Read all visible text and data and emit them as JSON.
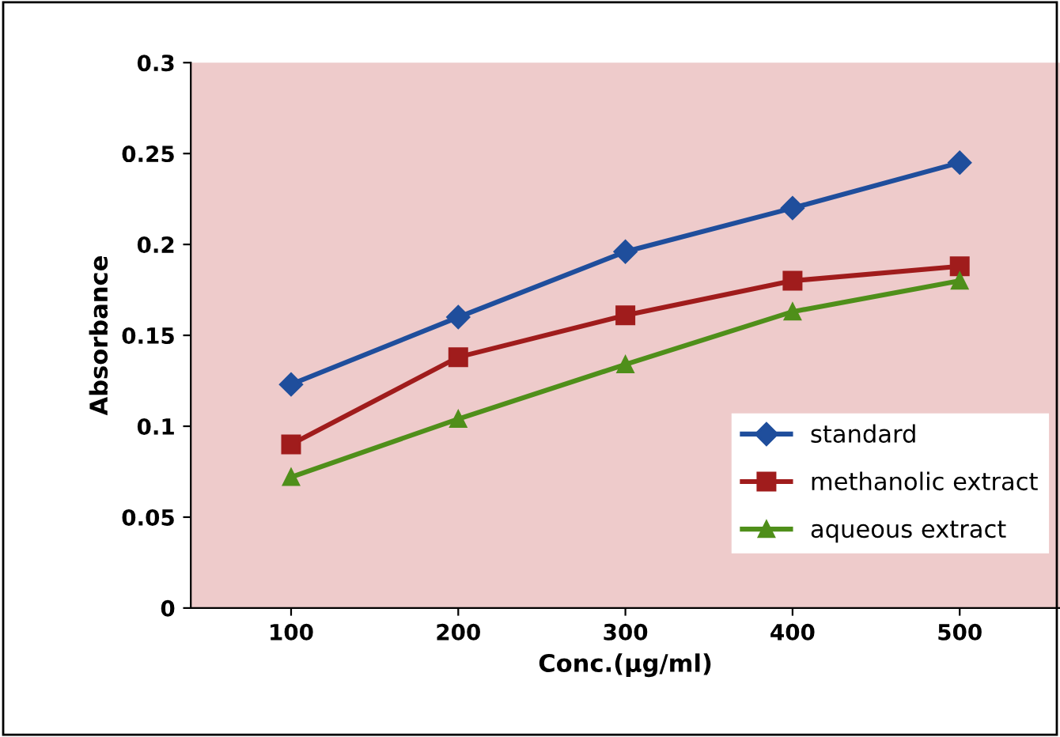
{
  "chart_data": {
    "type": "line",
    "xlabel": "Conc.(µg/ml)",
    "ylabel": "Absorbance",
    "categories": [
      "100",
      "200",
      "300",
      "400",
      "500"
    ],
    "series": [
      {
        "name": "standard",
        "color": "#1f4e9c",
        "marker": "diamond",
        "values": [
          0.123,
          0.16,
          0.196,
          0.22,
          0.245
        ]
      },
      {
        "name": "methanolic extract",
        "color": "#a01c1c",
        "marker": "square",
        "values": [
          0.09,
          0.138,
          0.161,
          0.18,
          0.188
        ]
      },
      {
        "name": "aqueous extract",
        "color": "#4f8f1a",
        "marker": "triangle",
        "values": [
          0.072,
          0.104,
          0.134,
          0.163,
          0.18
        ]
      }
    ],
    "ylim": [
      0,
      0.3
    ],
    "yticks": [
      0,
      0.05,
      0.1,
      0.15,
      0.2,
      0.25,
      0.3
    ],
    "grid": false,
    "legend": "bottom right"
  }
}
